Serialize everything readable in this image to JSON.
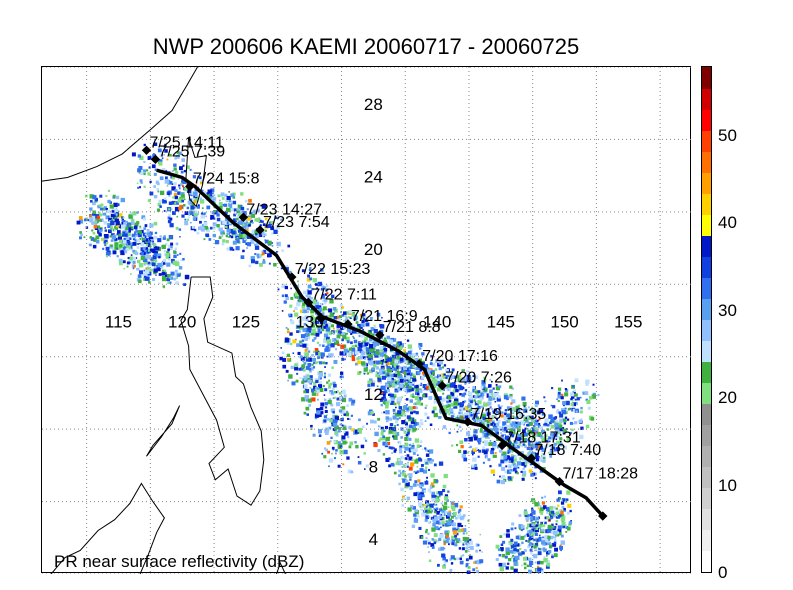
{
  "title": "NWP 200606 KAEMI 20060717 - 20060725",
  "footnote": "PR near surface reflectivity (dBZ)",
  "map": {
    "lon_range": [
      109,
      160
    ],
    "lat_range": [
      2,
      30
    ],
    "lon_labels": [
      {
        "value": 115,
        "text": "115"
      },
      {
        "value": 120,
        "text": "120"
      },
      {
        "value": 125,
        "text": "125"
      },
      {
        "value": 130,
        "text": "130"
      },
      {
        "value": 135,
        "text": ""
      },
      {
        "value": 140,
        "text": "140"
      },
      {
        "value": 145,
        "text": "145"
      },
      {
        "value": 150,
        "text": "150"
      },
      {
        "value": 155,
        "text": "155"
      }
    ],
    "lat_labels": [
      {
        "value": 4,
        "text": "4"
      },
      {
        "value": 8,
        "text": "8"
      },
      {
        "value": 12,
        "text": "12"
      },
      {
        "value": 16,
        "text": ""
      },
      {
        "value": 20,
        "text": "20"
      },
      {
        "value": 24,
        "text": "24"
      },
      {
        "value": 28,
        "text": "28"
      }
    ],
    "grid_lons": [
      112.5,
      117.5,
      122.5,
      127.5,
      132.5,
      137.5,
      142.5,
      147.5,
      152.5,
      157.5
    ],
    "grid_lats": [
      2,
      6,
      10,
      14,
      18,
      22,
      26,
      30
    ],
    "track_line": [
      [
        118,
        24.3
      ],
      [
        120,
        23.9
      ],
      [
        121,
        23.4
      ],
      [
        124,
        21.4
      ],
      [
        127.4,
        19.6
      ],
      [
        129.4,
        17.3
      ],
      [
        131,
        16.2
      ],
      [
        134,
        15.4
      ],
      [
        137,
        14.3
      ],
      [
        139,
        13.3
      ],
      [
        140.7,
        10.6
      ],
      [
        143.5,
        10.2
      ],
      [
        146,
        8.9
      ],
      [
        148,
        7.9
      ],
      [
        150,
        6.9
      ],
      [
        151.7,
        6.2
      ],
      [
        153,
        5.2
      ]
    ],
    "track_points": [
      {
        "lon": 153,
        "lat": 5.2,
        "label": ""
      },
      {
        "lon": 149.6,
        "lat": 7.1,
        "label": "7/17 18:28"
      },
      {
        "lon": 147.4,
        "lat": 8.4,
        "label": "7/18 7:40"
      },
      {
        "lon": 145.1,
        "lat": 9.1,
        "label": "7/18 17:31"
      },
      {
        "lon": 142.4,
        "lat": 10.4,
        "label": "7/19 16:35"
      },
      {
        "lon": 140.4,
        "lat": 12.4,
        "label": "7/20 7:26"
      },
      {
        "lon": 138.6,
        "lat": 13.6,
        "label": "7/20 17:16"
      },
      {
        "lon": 135.5,
        "lat": 15.2,
        "label": "7/21 8:8"
      },
      {
        "lon": 133,
        "lat": 15.8,
        "label": "7/21 16:9"
      },
      {
        "lon": 130.9,
        "lat": 16.1,
        "label": ""
      },
      {
        "lon": 129.9,
        "lat": 17.0,
        "label": "7/22 7:11"
      },
      {
        "lon": 128.6,
        "lat": 18.4,
        "label": "7/22 15:23"
      },
      {
        "lon": 126.1,
        "lat": 21.0,
        "label": "7/23 7:54"
      },
      {
        "lon": 124.8,
        "lat": 21.7,
        "label": "7/23 14:27"
      },
      {
        "lon": 120.6,
        "lat": 23.4,
        "label": "7/24 15:8"
      },
      {
        "lon": 117.9,
        "lat": 24.9,
        "label": "7/25 7:39"
      },
      {
        "lon": 117.2,
        "lat": 25.4,
        "label": "7/25 14:11"
      }
    ],
    "coastlines": [
      [
        [
          109,
          23.7
        ],
        [
          111,
          23.9
        ],
        [
          113.3,
          24.5
        ],
        [
          115.3,
          25.2
        ],
        [
          117.6,
          26.6
        ],
        [
          119.2,
          27.6
        ],
        [
          120.3,
          28.9
        ],
        [
          121.2,
          30
        ]
      ],
      [
        [
          120.5,
          26.1
        ],
        [
          121,
          25
        ],
        [
          121.9,
          25.1
        ],
        [
          121.6,
          23.5
        ],
        [
          121.1,
          22.3
        ],
        [
          120.6,
          22.7
        ],
        [
          120.3,
          23.9
        ],
        [
          120.5,
          26.1
        ]
      ],
      [
        [
          120.7,
          18.4
        ],
        [
          122.2,
          18.4
        ],
        [
          122.4,
          17.3
        ],
        [
          121.7,
          16.1
        ],
        [
          122,
          14.8
        ],
        [
          123.9,
          14.2
        ],
        [
          124.2,
          12.9
        ],
        [
          124.8,
          12.5
        ],
        [
          125.4,
          11.2
        ],
        [
          126.2,
          9.9
        ],
        [
          126.4,
          8.3
        ],
        [
          126.1,
          6.6
        ],
        [
          125.4,
          5.8
        ],
        [
          124.3,
          6.3
        ],
        [
          123.6,
          7.8
        ],
        [
          122.6,
          7.2
        ],
        [
          122.1,
          8.1
        ],
        [
          123.3,
          9
        ],
        [
          122.7,
          10.5
        ],
        [
          121.8,
          11.7
        ],
        [
          120.6,
          13.3
        ],
        [
          120.5,
          14.6
        ],
        [
          119.9,
          16
        ],
        [
          120.4,
          16.6
        ],
        [
          120.7,
          18.4
        ]
      ],
      [
        [
          117.2,
          8.5
        ],
        [
          118.4,
          9.6
        ],
        [
          119.3,
          10.6
        ],
        [
          119.8,
          11.3
        ],
        [
          119.2,
          10.3
        ],
        [
          117.7,
          9.1
        ],
        [
          117.2,
          8.5
        ]
      ],
      [
        [
          109.6,
          1.9
        ],
        [
          110.8,
          2.9
        ],
        [
          112,
          3.3
        ],
        [
          113.4,
          4.4
        ],
        [
          114.7,
          5
        ],
        [
          115.9,
          5.9
        ],
        [
          116.8,
          7
        ],
        [
          117.7,
          6
        ],
        [
          118.6,
          5.1
        ],
        [
          118,
          4.3
        ],
        [
          117.3,
          3
        ],
        [
          116.7,
          2
        ]
      ],
      [
        [
          127.4,
          2
        ],
        [
          127.7,
          2.6
        ],
        [
          128.1,
          2
        ],
        [
          128.2,
          1.8
        ]
      ]
    ]
  },
  "colorbar": {
    "levels": [
      "#ffffff",
      "#f0f0f0",
      "#e0e0e0",
      "#d0d0d0",
      "#c0c0c0",
      "#b0b0b0",
      "#a0a0a0",
      "#909090",
      "#80e080",
      "#40b040",
      "#c0e0ff",
      "#90c0ff",
      "#5a9ef0",
      "#3070f0",
      "#1040e0",
      "#0018c8",
      "#ffff00",
      "#ffd000",
      "#ffa000",
      "#ff7000",
      "#ff4000",
      "#ff0000",
      "#d00000",
      "#800000"
    ],
    "min": 0,
    "max": 58,
    "ticks": [
      {
        "value": 0,
        "text": "0"
      },
      {
        "value": 10,
        "text": "10"
      },
      {
        "value": 20,
        "text": "20"
      },
      {
        "value": 30,
        "text": "30"
      },
      {
        "value": 40,
        "text": "40"
      },
      {
        "value": 50,
        "text": "50"
      }
    ]
  },
  "colors": {
    "track": "#000000",
    "grid": "#888888",
    "coast": "#000000"
  }
}
